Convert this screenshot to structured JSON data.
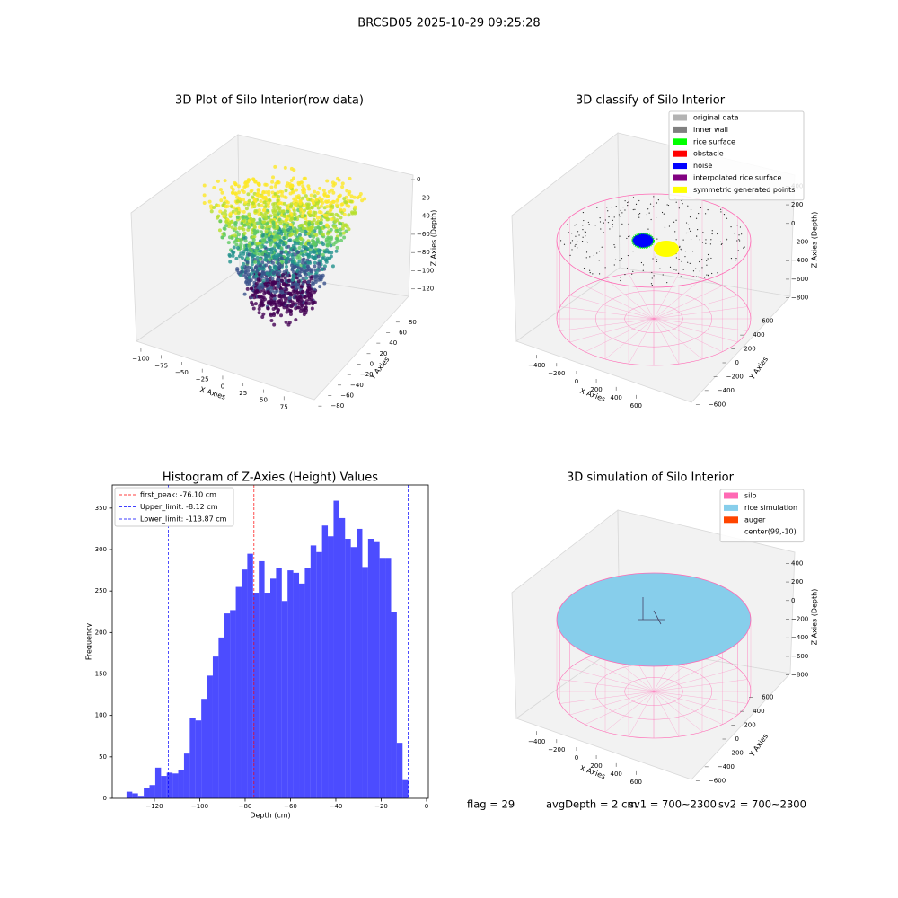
{
  "title": "BRCSD05 2025-10-29 09:25:28",
  "footer": [
    "flag = 29",
    "avgDepth = 2 cm",
    "sv1 = 700~2300",
    "sv2 = 700~2300"
  ],
  "chart_data": [
    {
      "type": "scatter3d",
      "title": "3D Plot of Silo Interior(row data)",
      "x_label": "X Axies",
      "y_label": "Y Axies",
      "z_label": "Z Axies (Depth)",
      "xlim": [
        -112,
        100
      ],
      "ylim": [
        -90,
        95
      ],
      "zlim": [
        -138,
        5
      ],
      "xticks": [
        {
          "value": -100,
          "label": "−100"
        },
        {
          "value": -75,
          "label": "−75"
        },
        {
          "value": -50,
          "label": "−50"
        },
        {
          "value": -25,
          "label": "−25"
        },
        0,
        25,
        50,
        75
      ],
      "yticks": [
        {
          "value": -80,
          "label": "−80"
        },
        {
          "value": -60,
          "label": "−60"
        },
        {
          "value": -40,
          "label": "−40"
        },
        {
          "value": -20,
          "label": "−20"
        },
        0,
        20,
        40,
        60,
        80
      ],
      "zticks": [
        0,
        {
          "value": -20,
          "label": "−20"
        },
        {
          "value": -40,
          "label": "−40"
        },
        {
          "value": -60,
          "label": "−60"
        },
        {
          "value": -80,
          "label": "−80"
        },
        {
          "value": -100,
          "label": "−100"
        },
        {
          "value": -120,
          "label": "−120"
        }
      ]
    },
    {
      "type": "scatter3d",
      "title": "3D classify of Silo Interior",
      "x_label": "X Axies",
      "y_label": "Y Axies",
      "z_label": "Z Axies (Depth)",
      "xlim": [
        -560,
        760
      ],
      "ylim": [
        -700,
        700
      ],
      "zlim": [
        -900,
        500
      ],
      "xticks": [
        {
          "value": -400,
          "label": "−400"
        },
        {
          "value": -200,
          "label": "−200"
        },
        0,
        200,
        400,
        600
      ],
      "yticks": [
        {
          "value": -600,
          "label": "−600"
        },
        {
          "value": -400,
          "label": "−400"
        },
        {
          "value": -200,
          "label": "−200"
        },
        0,
        200,
        400,
        600
      ],
      "zticks": [
        400,
        200,
        0,
        {
          "value": -200,
          "label": "−200"
        },
        {
          "value": -400,
          "label": "−400"
        },
        {
          "value": -600,
          "label": "−600"
        },
        {
          "value": -800,
          "label": "−800"
        }
      ],
      "legend": [
        {
          "name": "original data",
          "color": "#b3b3b3"
        },
        {
          "name": "inner wall",
          "color": "#808080"
        },
        {
          "name": "rice surface",
          "color": "#00ff00"
        },
        {
          "name": "obstacle",
          "color": "#ff0000"
        },
        {
          "name": "noise",
          "color": "#0000ff"
        },
        {
          "name": "interpolated rice surface",
          "color": "#800080"
        },
        {
          "name": "symmetric generated points",
          "color": "#ffff00"
        }
      ]
    },
    {
      "type": "histogram",
      "title": "Histogram of Z-Axies (Height) Values",
      "x_label": "Depth (cm)",
      "y_label": "Frequency",
      "color": "#0000ff",
      "bins": [
        -132.3,
        -129.76,
        -127.23,
        -124.69,
        -122.16,
        -119.62,
        -117.08,
        -114.55,
        -112.01,
        -109.48,
        -106.94,
        -104.4,
        -101.87,
        -99.33,
        -96.8,
        -94.26,
        -91.72,
        -89.19,
        -86.65,
        -84.12,
        -81.58,
        -79.04,
        -76.51,
        -73.97,
        -71.44,
        -68.9,
        -66.36,
        -63.83,
        -61.29,
        -58.76,
        -56.22,
        -53.68,
        -51.15,
        -48.61,
        -46.08,
        -43.54,
        -41.0,
        -38.47,
        -35.93,
        -33.4,
        -30.86,
        -28.32,
        -25.79,
        -23.25,
        -20.72,
        -18.18,
        -15.64,
        -13.11,
        -10.57,
        -8.04,
        -5.5
      ],
      "values": [
        8,
        6,
        3,
        12,
        16,
        37,
        27,
        31,
        30,
        34,
        54,
        97,
        94,
        120,
        148,
        171,
        194,
        223,
        227,
        255,
        276,
        295,
        248,
        286,
        248,
        265,
        278,
        238,
        275,
        272,
        259,
        278,
        305,
        297,
        329,
        316,
        359,
        338,
        313,
        303,
        325,
        279,
        313,
        309,
        290,
        290,
        225,
        67,
        22,
        0
      ],
      "vlines": [
        {
          "name": "first_peak: -76.10 cm",
          "value": -76.1,
          "color": "#ff0000"
        },
        {
          "name": "Upper_limit: -8.12 cm",
          "value": -8.12,
          "color": "#0000ff"
        },
        {
          "name": "Lower_limit: -113.87 cm",
          "value": -113.87,
          "color": "#0000ff"
        }
      ],
      "xlim": [
        -138.6,
        0.8
      ],
      "ylim": [
        0,
        378
      ],
      "xticks": [
        {
          "value": -120,
          "label": "−120"
        },
        {
          "value": -100,
          "label": "−100"
        },
        {
          "value": -80,
          "label": "−80"
        },
        {
          "value": -60,
          "label": "−60"
        },
        {
          "value": -40,
          "label": "−40"
        },
        {
          "value": -20,
          "label": "−20"
        },
        0
      ],
      "yticks": [
        0,
        50,
        100,
        150,
        200,
        250,
        300,
        350
      ]
    },
    {
      "type": "surface3d",
      "title": "3D simulation of Silo Interior",
      "x_label": "X Axies",
      "y_label": "Y Axies",
      "z_label": "Z Axies (Depth)",
      "xlim": [
        -560,
        760
      ],
      "ylim": [
        -700,
        700
      ],
      "zlim": [
        -900,
        500
      ],
      "xticks": [
        {
          "value": -400,
          "label": "−400"
        },
        {
          "value": -200,
          "label": "−200"
        },
        0,
        200,
        400,
        600
      ],
      "yticks": [
        {
          "value": -600,
          "label": "−600"
        },
        {
          "value": -400,
          "label": "−400"
        },
        {
          "value": -200,
          "label": "−200"
        },
        0,
        200,
        400,
        600
      ],
      "zticks": [
        400,
        200,
        0,
        {
          "value": -200,
          "label": "−200"
        },
        {
          "value": -400,
          "label": "−400"
        },
        {
          "value": -600,
          "label": "−600"
        },
        {
          "value": -800,
          "label": "−800"
        }
      ],
      "legend": [
        {
          "name": "silo",
          "color": "#ff69b4"
        },
        {
          "name": "rice simulation",
          "color": "#87ceeb"
        },
        {
          "name": "auger",
          "color": "#ff4500"
        },
        {
          "name": "center(99,-10)",
          "color": "#ffffff"
        }
      ]
    }
  ]
}
